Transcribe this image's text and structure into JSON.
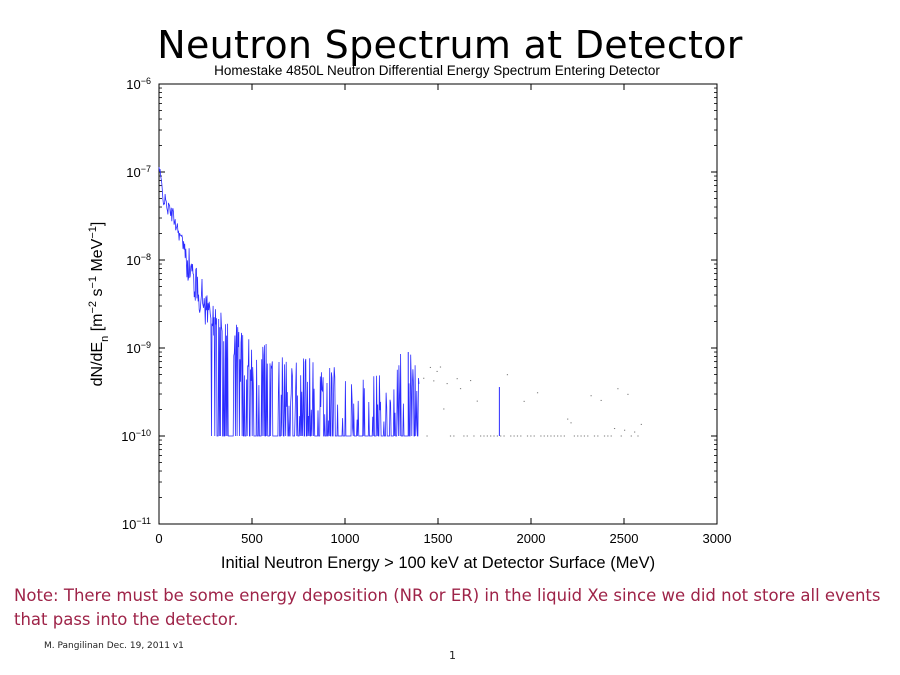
{
  "slide": {
    "title": "Neutron Spectrum at Detector",
    "note": "Note: There must be some energy deposition (NR or ER) in the liquid Xe since we did not store all events that pass into the detector.",
    "author": "M. Pangilinan Dec. 19, 2011 v1",
    "page_number": "1"
  },
  "chart_data": {
    "type": "line",
    "title": "Homestake 4850L Neutron Differential Energy Spectrum Entering Detector",
    "xlabel": "Initial Neutron Energy > 100 keV at Detector Surface (MeV)",
    "ylabel": "dN/dE_n [m^-2 s^-1 MeV^-1]",
    "xlim": [
      0,
      3000
    ],
    "ylim": [
      1e-11,
      1e-06
    ],
    "yscale": "log",
    "x_ticks": [
      0,
      500,
      1000,
      1500,
      2000,
      2500,
      3000
    ],
    "y_ticks": [
      {
        "base": "10",
        "exp": "-6"
      },
      {
        "base": "10",
        "exp": "-7"
      },
      {
        "base": "10",
        "exp": "-8"
      },
      {
        "base": "10",
        "exp": "-9"
      },
      {
        "base": "10",
        "exp": "-10"
      },
      {
        "base": "10",
        "exp": "-11"
      }
    ],
    "grid": false,
    "line_color": "#2b2bff",
    "floor": 1e-10,
    "series": [
      {
        "x": [
          0,
          10,
          25,
          50,
          75,
          100,
          125,
          150,
          175,
          200,
          250,
          300,
          350,
          400,
          500,
          600,
          700,
          800,
          900,
          1000,
          1100,
          1200,
          1340,
          1400,
          1600,
          1830,
          2000,
          2200,
          2400,
          2600
        ],
        "y": [
          1.1e-07,
          8e-08,
          5e-08,
          3.8e-08,
          3.2e-08,
          2.3e-08,
          1.6e-08,
          1.05e-08,
          7e-09,
          5e-09,
          3e-09,
          2e-09,
          1.4e-09,
          1e-09,
          7e-10,
          5e-10,
          4e-10,
          3.5e-10,
          3e-10,
          2.8e-10,
          2.6e-10,
          2.5e-10,
          5e-10,
          2.3e-10,
          2.1e-10,
          2e-10,
          1.8e-10,
          1.5e-10,
          1.3e-10,
          1.1e-10
        ]
      }
    ]
  }
}
